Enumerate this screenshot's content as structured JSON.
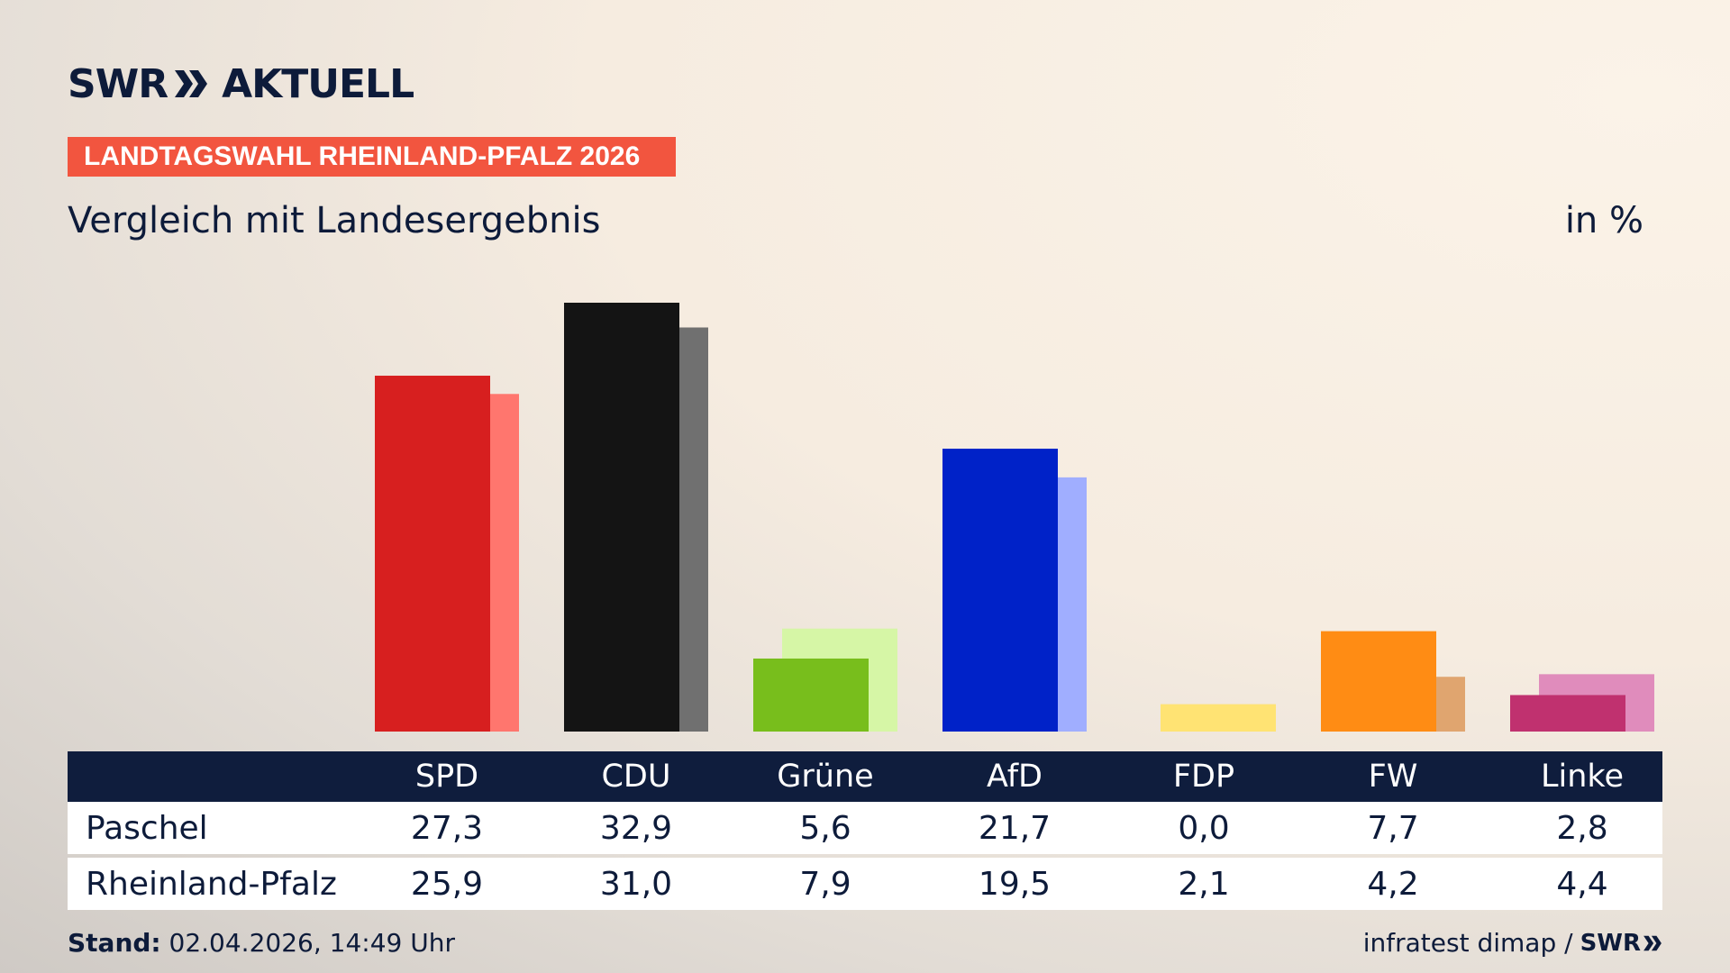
{
  "brand": {
    "logo_text": "SWR",
    "logo_suffix": "AKTUELL",
    "badge": "LANDTAGSWAHL RHEINLAND-PFALZ 2026"
  },
  "subtitle": "Vergleich mit Landesergebnis",
  "unit": "in %",
  "colors": {
    "primary": [
      "#d71f1f",
      "#141414",
      "#78be1c",
      "#0022c8",
      "#ffe373",
      "#ff8c14",
      "#c0316f"
    ],
    "secondary": [
      "#ff766e",
      "#707070",
      "#d6f6a6",
      "#a0aeff",
      "#ffe373",
      "#e0a56f",
      "#e08cbc"
    ],
    "badge": "#f2553f",
    "table_header": "#0f1d3d"
  },
  "chart_data": {
    "type": "bar",
    "categories": [
      "SPD",
      "CDU",
      "Grüne",
      "AfD",
      "FDP",
      "FW",
      "Linke"
    ],
    "series": [
      {
        "name": "Paschel",
        "values": [
          27.3,
          32.9,
          5.6,
          21.7,
          0.0,
          7.7,
          2.8
        ]
      },
      {
        "name": "Rheinland-Pfalz",
        "values": [
          25.9,
          31.0,
          7.9,
          19.5,
          2.1,
          4.2,
          4.4
        ]
      }
    ],
    "value_labels": {
      "Paschel": [
        "27,3",
        "32,9",
        "5,6",
        "21,7",
        "0,0",
        "7,7",
        "2,8"
      ],
      "Rheinland-Pfalz": [
        "25,9",
        "31,0",
        "7,9",
        "19,5",
        "2,1",
        "4,2",
        "4,4"
      ]
    },
    "ylim": [
      0,
      34
    ],
    "grid": false
  },
  "footer": {
    "stand_label": "Stand:",
    "stand_value": " 02.04.2026, 14:49 Uhr",
    "source": "infratest dimap /",
    "source_logo": "SWR"
  }
}
